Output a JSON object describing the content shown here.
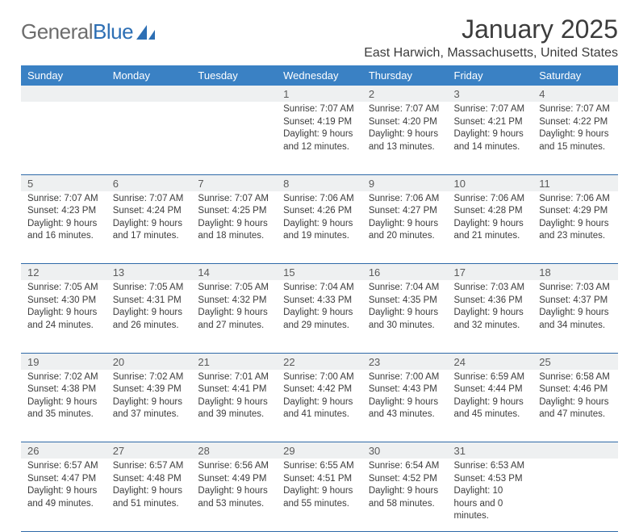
{
  "logo": {
    "grey": "General",
    "blue": "Blue"
  },
  "title": "January 2025",
  "subtitle": "East Harwich, Massachusetts, United States",
  "colors": {
    "header_bg": "#3a81c4",
    "header_text": "#ffffff",
    "daynum_bg": "#eef0f1",
    "rule": "#2f6aa8",
    "text": "#3c3c3c"
  },
  "day_names": [
    "Sunday",
    "Monday",
    "Tuesday",
    "Wednesday",
    "Thursday",
    "Friday",
    "Saturday"
  ],
  "weeks": [
    [
      null,
      null,
      null,
      {
        "n": "1",
        "sr": "7:07 AM",
        "ss": "4:19 PM",
        "dl": "9 hours and 12 minutes."
      },
      {
        "n": "2",
        "sr": "7:07 AM",
        "ss": "4:20 PM",
        "dl": "9 hours and 13 minutes."
      },
      {
        "n": "3",
        "sr": "7:07 AM",
        "ss": "4:21 PM",
        "dl": "9 hours and 14 minutes."
      },
      {
        "n": "4",
        "sr": "7:07 AM",
        "ss": "4:22 PM",
        "dl": "9 hours and 15 minutes."
      }
    ],
    [
      {
        "n": "5",
        "sr": "7:07 AM",
        "ss": "4:23 PM",
        "dl": "9 hours and 16 minutes."
      },
      {
        "n": "6",
        "sr": "7:07 AM",
        "ss": "4:24 PM",
        "dl": "9 hours and 17 minutes."
      },
      {
        "n": "7",
        "sr": "7:07 AM",
        "ss": "4:25 PM",
        "dl": "9 hours and 18 minutes."
      },
      {
        "n": "8",
        "sr": "7:06 AM",
        "ss": "4:26 PM",
        "dl": "9 hours and 19 minutes."
      },
      {
        "n": "9",
        "sr": "7:06 AM",
        "ss": "4:27 PM",
        "dl": "9 hours and 20 minutes."
      },
      {
        "n": "10",
        "sr": "7:06 AM",
        "ss": "4:28 PM",
        "dl": "9 hours and 21 minutes."
      },
      {
        "n": "11",
        "sr": "7:06 AM",
        "ss": "4:29 PM",
        "dl": "9 hours and 23 minutes."
      }
    ],
    [
      {
        "n": "12",
        "sr": "7:05 AM",
        "ss": "4:30 PM",
        "dl": "9 hours and 24 minutes."
      },
      {
        "n": "13",
        "sr": "7:05 AM",
        "ss": "4:31 PM",
        "dl": "9 hours and 26 minutes."
      },
      {
        "n": "14",
        "sr": "7:05 AM",
        "ss": "4:32 PM",
        "dl": "9 hours and 27 minutes."
      },
      {
        "n": "15",
        "sr": "7:04 AM",
        "ss": "4:33 PM",
        "dl": "9 hours and 29 minutes."
      },
      {
        "n": "16",
        "sr": "7:04 AM",
        "ss": "4:35 PM",
        "dl": "9 hours and 30 minutes."
      },
      {
        "n": "17",
        "sr": "7:03 AM",
        "ss": "4:36 PM",
        "dl": "9 hours and 32 minutes."
      },
      {
        "n": "18",
        "sr": "7:03 AM",
        "ss": "4:37 PM",
        "dl": "9 hours and 34 minutes."
      }
    ],
    [
      {
        "n": "19",
        "sr": "7:02 AM",
        "ss": "4:38 PM",
        "dl": "9 hours and 35 minutes."
      },
      {
        "n": "20",
        "sr": "7:02 AM",
        "ss": "4:39 PM",
        "dl": "9 hours and 37 minutes."
      },
      {
        "n": "21",
        "sr": "7:01 AM",
        "ss": "4:41 PM",
        "dl": "9 hours and 39 minutes."
      },
      {
        "n": "22",
        "sr": "7:00 AM",
        "ss": "4:42 PM",
        "dl": "9 hours and 41 minutes."
      },
      {
        "n": "23",
        "sr": "7:00 AM",
        "ss": "4:43 PM",
        "dl": "9 hours and 43 minutes."
      },
      {
        "n": "24",
        "sr": "6:59 AM",
        "ss": "4:44 PM",
        "dl": "9 hours and 45 minutes."
      },
      {
        "n": "25",
        "sr": "6:58 AM",
        "ss": "4:46 PM",
        "dl": "9 hours and 47 minutes."
      }
    ],
    [
      {
        "n": "26",
        "sr": "6:57 AM",
        "ss": "4:47 PM",
        "dl": "9 hours and 49 minutes."
      },
      {
        "n": "27",
        "sr": "6:57 AM",
        "ss": "4:48 PM",
        "dl": "9 hours and 51 minutes."
      },
      {
        "n": "28",
        "sr": "6:56 AM",
        "ss": "4:49 PM",
        "dl": "9 hours and 53 minutes."
      },
      {
        "n": "29",
        "sr": "6:55 AM",
        "ss": "4:51 PM",
        "dl": "9 hours and 55 minutes."
      },
      {
        "n": "30",
        "sr": "6:54 AM",
        "ss": "4:52 PM",
        "dl": "9 hours and 58 minutes."
      },
      {
        "n": "31",
        "sr": "6:53 AM",
        "ss": "4:53 PM",
        "dl": "10 hours and 0 minutes."
      },
      null
    ]
  ],
  "labels": {
    "sunrise": "Sunrise: ",
    "sunset": "Sunset: ",
    "daylight": "Daylight: "
  }
}
